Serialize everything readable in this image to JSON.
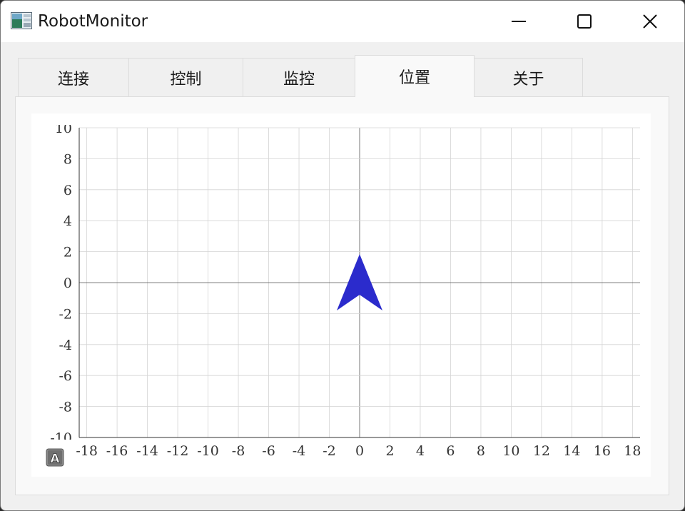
{
  "window": {
    "title": "RobotMonitor",
    "app_icon": "app-window-icon",
    "controls": {
      "minimize": "minimize-icon",
      "maximize": "maximize-icon",
      "close": "close-icon"
    }
  },
  "tabs": [
    {
      "label": "连接",
      "active": false
    },
    {
      "label": "控制",
      "active": false
    },
    {
      "label": "监控",
      "active": false
    },
    {
      "label": "位置",
      "active": true
    },
    {
      "label": "关于",
      "active": false
    }
  ],
  "colors": {
    "robot_marker": "#2b2bcc",
    "grid": "#d4d4d4",
    "axis": "#555555"
  },
  "chart_data": {
    "type": "scatter",
    "marker": "arrow",
    "points": [
      {
        "x": 0,
        "y": 0,
        "heading": "up"
      }
    ],
    "xlim": [
      -18.5,
      18.5
    ],
    "ylim": [
      -10,
      10
    ],
    "x_ticks": [
      -18,
      -16,
      -14,
      -12,
      -10,
      -8,
      -6,
      -4,
      -2,
      0,
      2,
      4,
      6,
      8,
      10,
      12,
      14,
      16,
      18
    ],
    "x_tick_labels": [
      "-18",
      "-16",
      "-14",
      "-12",
      "-10",
      "-8",
      "-6",
      "-4",
      "-2",
      "0",
      "2",
      "4",
      "6",
      "8",
      "10",
      "12",
      "14",
      "16",
      "18"
    ],
    "y_ticks": [
      -10,
      -8,
      -6,
      -4,
      -2,
      0,
      2,
      4,
      6,
      8,
      10
    ],
    "y_tick_labels": [
      "-10",
      "-8",
      "-6",
      "-4",
      "-2",
      "0",
      "2",
      "4",
      "6",
      "8",
      "10"
    ],
    "grid": true,
    "title": "",
    "xlabel": "",
    "ylabel": ""
  },
  "toolbar_icon": "auto-scale-a-icon"
}
